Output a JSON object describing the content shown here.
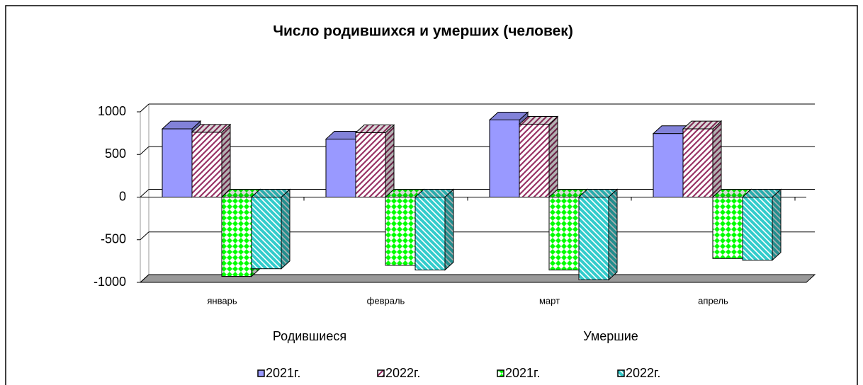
{
  "chart_data": {
    "type": "bar",
    "title": "Число родившихся и умерших (человек)",
    "annotations": [
      "Родившиеся",
      "Умершие"
    ],
    "categories": [
      "январь",
      "февраль",
      "март",
      "апрель"
    ],
    "series": [
      {
        "name": "2021г.",
        "color": "#9999ff",
        "pattern": "solid",
        "values": [
          800,
          680,
          905,
          745
        ]
      },
      {
        "name": "2022г.",
        "color": "#993366",
        "pattern": "hatch",
        "values": [
          760,
          755,
          855,
          800
        ]
      },
      {
        "name": "2021г.",
        "color": "#00ff00",
        "pattern": "diamond",
        "values": [
          -930,
          -800,
          -855,
          -720
        ]
      },
      {
        "name": "2022г.",
        "color": "#33cccc",
        "pattern": "diagonal",
        "values": [
          -840,
          -855,
          -970,
          -740
        ]
      }
    ],
    "ylim": [
      -1000,
      1000
    ],
    "yticks": [
      -1000,
      -500,
      0,
      500,
      1000
    ],
    "grid": true
  }
}
